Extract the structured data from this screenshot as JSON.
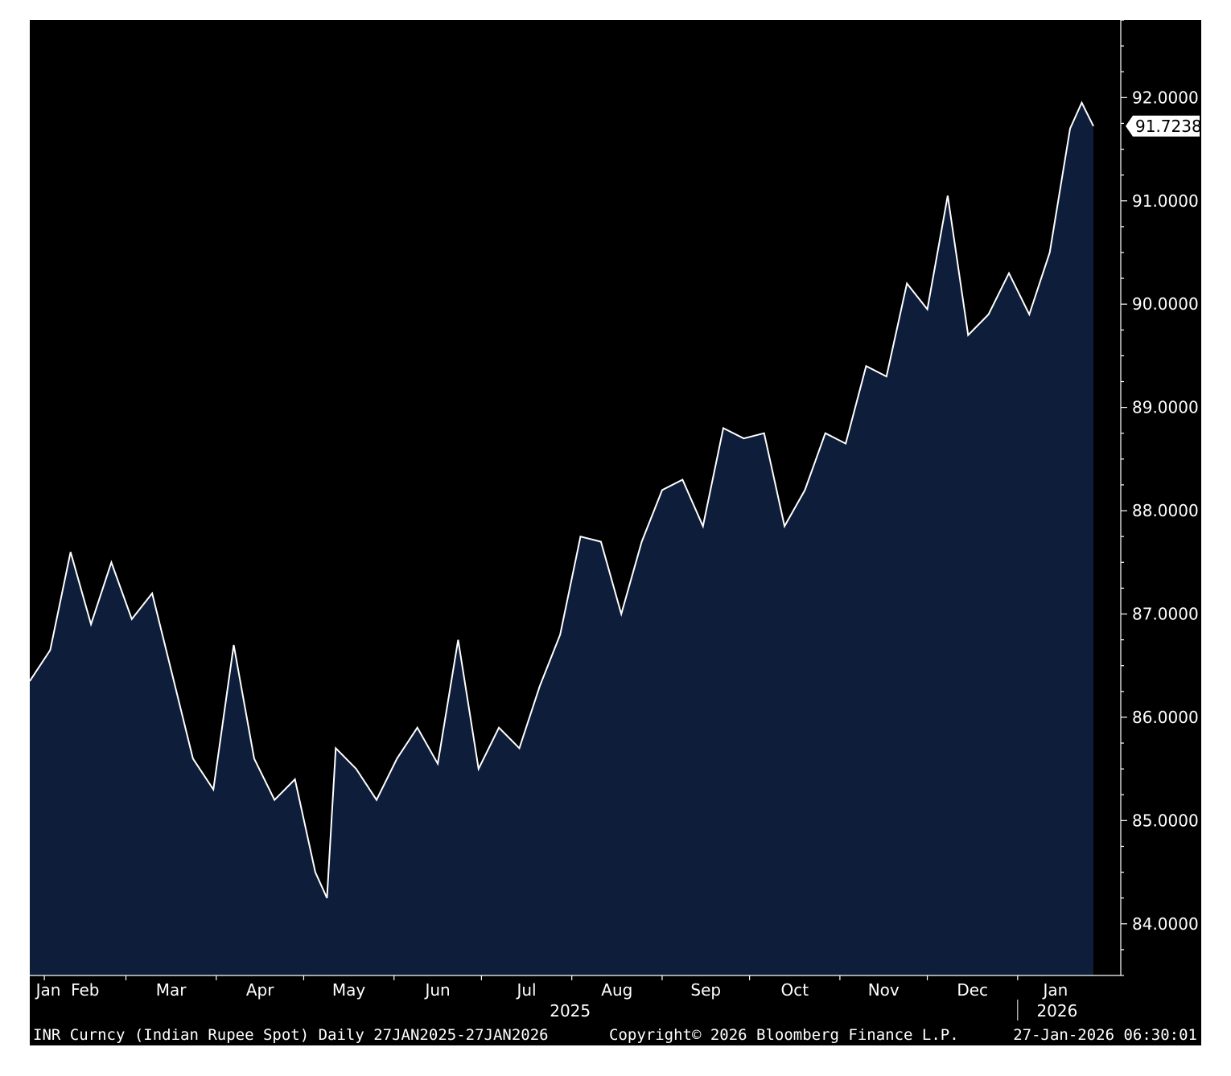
{
  "chart_data": {
    "type": "area",
    "ylim": [
      83.5,
      92.75
    ],
    "yticks": [
      "84.0000",
      "85.0000",
      "86.0000",
      "87.0000",
      "88.0000",
      "89.0000",
      "90.0000",
      "91.0000",
      "92.0000"
    ],
    "x_month_labels": [
      "Jan",
      "Feb",
      "Mar",
      "Apr",
      "May",
      "Jun",
      "Jul",
      "Aug",
      "Sep",
      "Oct",
      "Nov",
      "Dec",
      "Jan"
    ],
    "year_labels": [
      "2025",
      "2026"
    ],
    "last_value": "91.7238",
    "x": [
      "2025-01-27",
      "2025-02-03",
      "2025-02-10",
      "2025-02-17",
      "2025-02-24",
      "2025-03-03",
      "2025-03-10",
      "2025-03-17",
      "2025-03-24",
      "2025-03-31",
      "2025-04-07",
      "2025-04-14",
      "2025-04-21",
      "2025-04-28",
      "2025-05-05",
      "2025-05-09",
      "2025-05-12",
      "2025-05-19",
      "2025-05-26",
      "2025-06-02",
      "2025-06-09",
      "2025-06-16",
      "2025-06-23",
      "2025-06-30",
      "2025-07-07",
      "2025-07-14",
      "2025-07-21",
      "2025-07-28",
      "2025-08-04",
      "2025-08-11",
      "2025-08-18",
      "2025-08-25",
      "2025-09-01",
      "2025-09-08",
      "2025-09-15",
      "2025-09-22",
      "2025-09-29",
      "2025-10-06",
      "2025-10-13",
      "2025-10-20",
      "2025-10-27",
      "2025-11-03",
      "2025-11-10",
      "2025-11-17",
      "2025-11-24",
      "2025-12-01",
      "2025-12-08",
      "2025-12-15",
      "2025-12-22",
      "2025-12-29",
      "2026-01-05",
      "2026-01-12",
      "2026-01-19",
      "2026-01-23",
      "2026-01-27"
    ],
    "values": [
      86.35,
      86.65,
      87.6,
      86.9,
      87.5,
      86.95,
      87.2,
      86.4,
      85.6,
      85.3,
      86.7,
      85.6,
      85.2,
      85.4,
      84.5,
      84.25,
      85.7,
      85.5,
      85.2,
      85.6,
      85.9,
      85.55,
      86.75,
      85.5,
      85.9,
      85.7,
      86.3,
      86.8,
      87.75,
      87.7,
      87.0,
      87.7,
      88.2,
      88.3,
      87.85,
      88.8,
      88.7,
      88.75,
      87.85,
      88.2,
      88.75,
      88.65,
      89.4,
      89.3,
      90.2,
      89.95,
      91.05,
      89.7,
      89.9,
      90.3,
      89.9,
      90.5,
      91.7,
      91.95,
      91.7238
    ],
    "grid": false,
    "line_color": "#ffffff",
    "fill_color": "#0d1d3a",
    "background": "#000000"
  },
  "footer": {
    "left": "INR Curncy (Indian Rupee Spot) Daily 27JAN2025-27JAN2026",
    "center": "Copyright© 2026 Bloomberg Finance L.P.",
    "right": "27-Jan-2026 06:30:01"
  }
}
